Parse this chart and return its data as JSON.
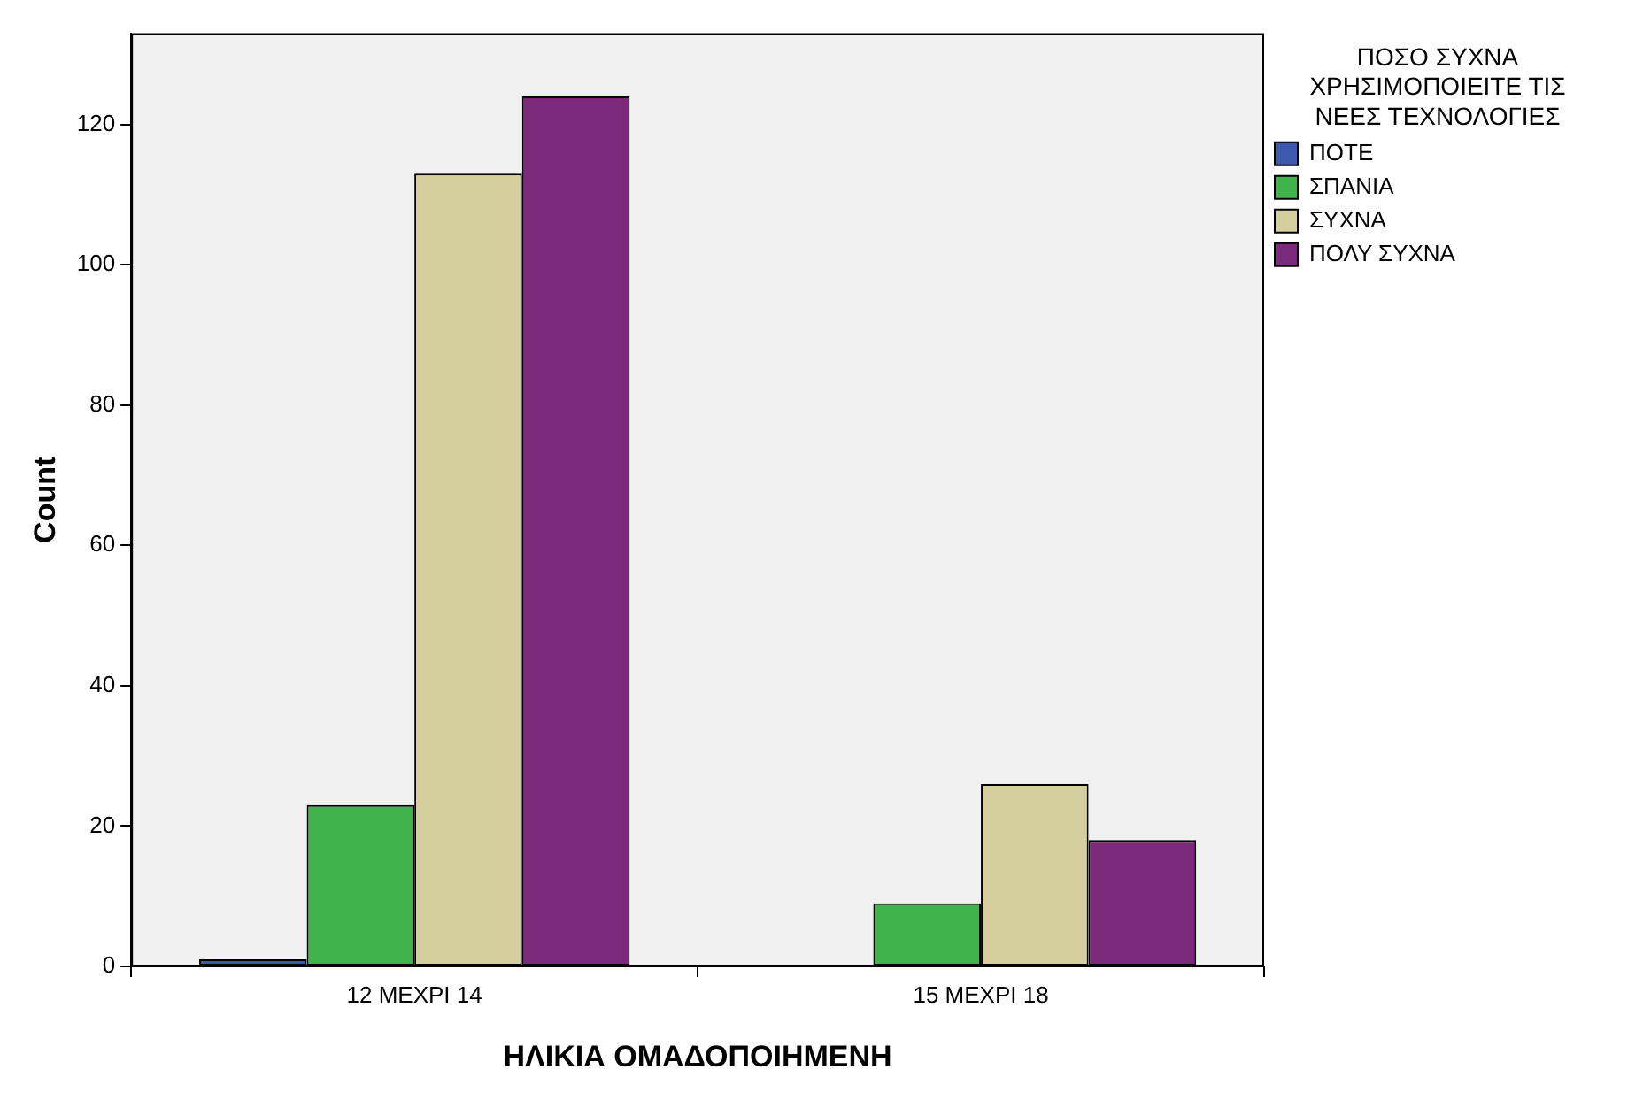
{
  "chart_data": {
    "type": "bar",
    "xlabel": "ΗΛΙΚΙΑ ΟΜΑΔΟΠΟΙΗΜΕΝΗ",
    "ylabel": "Count",
    "legend_title": "ΠΟΣΟ ΣΥΧΝΑ ΧΡΗΣΙΜΟΠΟΙΕΙΤΕ ΤΙΣ ΝΕΕΣ ΤΕΧΝΟΛΟΓΙΕΣ",
    "categories": [
      "12 ΜΕΧΡΙ 14",
      "15 ΜΕΧΡΙ 18"
    ],
    "series": [
      {
        "name": "ΠΟΤΕ",
        "color": "#3e58ac",
        "values": [
          1,
          null
        ]
      },
      {
        "name": "ΣΠΑΝΙΑ",
        "color": "#3fb44a",
        "values": [
          23,
          9
        ]
      },
      {
        "name": "ΣΥΧΝΑ",
        "color": "#d5cf9d",
        "values": [
          113,
          26
        ]
      },
      {
        "name": "ΠΟΛΥ ΣΥΧΝΑ",
        "color": "#7b2a7b",
        "values": [
          124,
          18
        ]
      }
    ],
    "ylim": [
      0,
      133
    ],
    "yticks": [
      0,
      20,
      40,
      60,
      80,
      100,
      120
    ],
    "grid": false,
    "legend": "top right"
  }
}
